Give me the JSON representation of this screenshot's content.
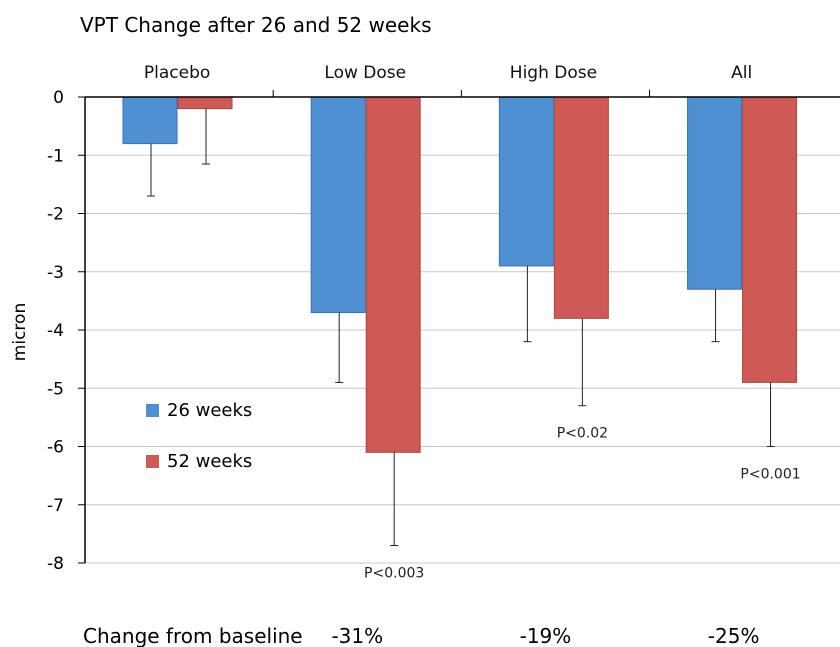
{
  "chart_data": {
    "type": "bar",
    "title": "VPT Change after 26 and 52 weeks",
    "ylabel": "micron",
    "ylim": [
      -8,
      0
    ],
    "yticks": [
      0,
      -1,
      -2,
      -3,
      -4,
      -5,
      -6,
      -7,
      -8
    ],
    "categories": [
      "Placebo",
      "Low Dose",
      "High Dose",
      "All"
    ],
    "series": [
      {
        "name": "26 weeks",
        "color": "#4f90d3",
        "values": [
          -0.8,
          -3.7,
          -2.9,
          -3.3
        ],
        "error": [
          0.9,
          1.2,
          1.3,
          0.9
        ]
      },
      {
        "name": "52 weeks",
        "color": "#cf5a55",
        "values": [
          -0.2,
          -6.1,
          -3.8,
          -4.9
        ],
        "error": [
          0.95,
          1.6,
          1.5,
          1.1
        ]
      }
    ],
    "p_values": [
      "",
      "P<0.003",
      "P<0.02",
      "P<0.001"
    ],
    "change_label": "Change from baseline",
    "change_values": [
      "",
      "-31%",
      "-19%",
      "-25%"
    ],
    "grid": true,
    "legend_position": "lower-left"
  }
}
